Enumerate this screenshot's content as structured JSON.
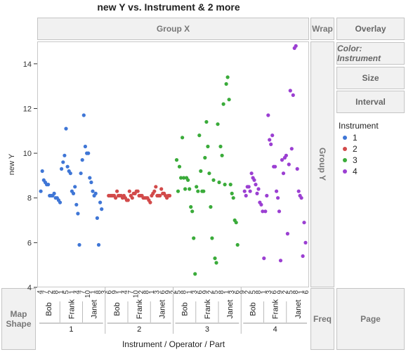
{
  "title": "new Y vs. Instrument & 2 more",
  "zones": {
    "group_x": "Group X",
    "group_y": "Group Y",
    "wrap": "Wrap",
    "map_shape": [
      "Map",
      "Shape"
    ],
    "freq": "Freq",
    "page": "Page"
  },
  "buttons": {
    "overlay": "Overlay",
    "color": "Color: Instrument",
    "size": "Size",
    "interval": "Interval"
  },
  "legend": {
    "title": "Instrument",
    "items": [
      {
        "label": "1",
        "color": "#3f76d6"
      },
      {
        "label": "2",
        "color": "#d24a4a"
      },
      {
        "label": "3",
        "color": "#3aab3a"
      },
      {
        "label": "4",
        "color": "#9b3fd2"
      }
    ]
  },
  "axes": {
    "ylabel": "new Y",
    "xlabel": "Instrument / Operator / Part",
    "ylim": [
      4,
      15
    ],
    "yticks": [
      4,
      6,
      8,
      10,
      12,
      14
    ],
    "instruments": [
      "1",
      "2",
      "3",
      "4"
    ],
    "operators": [
      "Bob",
      "Frank",
      "Janet"
    ],
    "parts_row": [
      "4",
      "7",
      "2",
      "8",
      "1",
      "5",
      "1",
      "4",
      "7",
      "10",
      "1",
      "8",
      "3",
      "6",
      "9",
      "1",
      "4",
      "7",
      "10",
      "2",
      "8",
      "1",
      "3",
      "6",
      "9",
      "2",
      "5",
      "8",
      "1",
      "3",
      "6",
      "9",
      "2",
      "5",
      "8",
      "1",
      "3",
      "6",
      "9",
      "2",
      "5",
      "8",
      "1",
      "3",
      "6",
      "9",
      "2",
      "5",
      "8",
      "1",
      "6"
    ]
  },
  "chart_data": {
    "type": "scatter",
    "xlabel": "Instrument / Operator / Part",
    "ylabel": "new Y",
    "ylim": [
      4,
      15
    ],
    "grid": false,
    "legend": "right",
    "series": [
      {
        "name": "1",
        "values": [
          8.3,
          9.2,
          8.8,
          8.7,
          8.6,
          8.6,
          8.1,
          8.1,
          8.1,
          8.2,
          8.0,
          8.0,
          7.9,
          7.8,
          9.3,
          9.6,
          9.9,
          11.1,
          9.4,
          9.2,
          9.1,
          8.3,
          8.2,
          8.5,
          7.7,
          7.3,
          5.9,
          9.1,
          9.7,
          11.7,
          10.3,
          10.0,
          10.0,
          8.9,
          8.7,
          8.3,
          8.1,
          8.2,
          7.1,
          5.9,
          7.8,
          7.5
        ]
      },
      {
        "name": "2",
        "values": [
          8.1,
          8.1,
          8.1,
          8.1,
          8.1,
          8.0,
          8.3,
          8.1,
          8.1,
          8.1,
          8.0,
          8.1,
          8.0,
          7.9,
          7.9,
          8.3,
          8.1,
          8.0,
          8.2,
          8.2,
          8.3,
          8.3,
          8.1,
          8.1,
          8.1,
          8.0,
          8.0,
          8.0,
          8.0,
          7.9,
          7.8,
          8.1,
          8.2,
          8.3,
          8.5,
          8.1,
          8.1,
          8.1,
          8.4,
          8.2,
          8.2,
          8.1,
          8.0,
          8.1,
          8.1
        ]
      },
      {
        "name": "3",
        "values": [
          9.7,
          8.3,
          9.4,
          8.9,
          10.7,
          8.9,
          8.4,
          8.9,
          8.8,
          8.4,
          7.6,
          7.4,
          6.2,
          4.6,
          8.5,
          8.3,
          10.8,
          9.2,
          8.3,
          8.3,
          9.8,
          11.4,
          10.3,
          9.1,
          7.6,
          6.2,
          8.8,
          5.3,
          5.1,
          11.3,
          8.7,
          10.3,
          9.9,
          12.2,
          8.6,
          13.1,
          13.4,
          12.4,
          8.6,
          8.2,
          8.0,
          7.0,
          6.9,
          5.9
        ]
      },
      {
        "name": "4",
        "values": [
          8.3,
          8.1,
          8.5,
          8.5,
          8.3,
          9.1,
          8.9,
          8.8,
          8.6,
          8.2,
          8.4,
          7.8,
          7.7,
          7.4,
          5.3,
          7.4,
          8.1,
          11.7,
          10.6,
          10.4,
          10.8,
          9.4,
          9.4,
          8.3,
          8.0,
          7.4,
          5.2,
          9.7,
          9.1,
          9.8,
          9.9,
          6.4,
          9.5,
          12.8,
          10.2,
          12.6,
          14.7,
          14.8,
          9.3,
          8.3,
          8.1,
          8.0,
          5.4,
          6.9,
          6.0
        ]
      }
    ]
  }
}
